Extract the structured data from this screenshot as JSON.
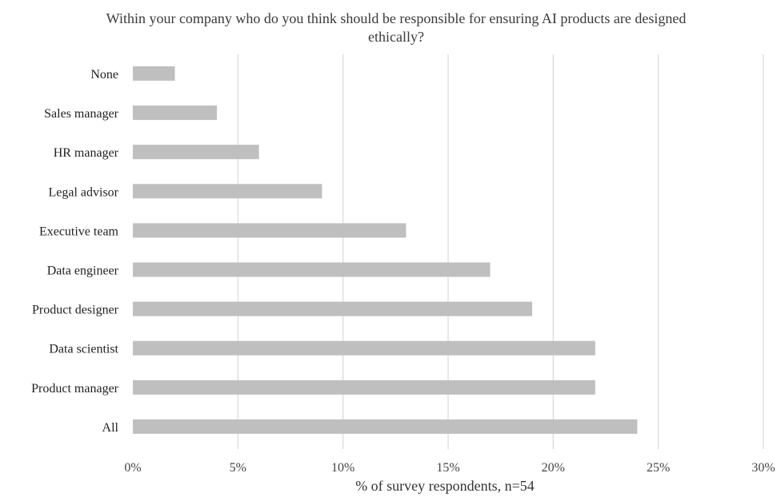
{
  "chart_data": {
    "type": "bar",
    "orientation": "horizontal",
    "title_lines": [
      "Within your company who do you think should be responsible for ensuring AI products are designed",
      "ethically?"
    ],
    "xlabel": "% of survey respondents, n=54",
    "ylabel": "",
    "categories": [
      "None",
      "Sales manager",
      "HR manager",
      "Legal advisor",
      "Executive team",
      "Data engineer",
      "Product designer",
      "Data scientist",
      "Product manager",
      "All"
    ],
    "values": [
      2,
      4,
      6,
      9,
      13,
      17,
      19,
      22,
      22,
      24
    ],
    "xlim": [
      0,
      30
    ],
    "x_ticks": [
      0,
      5,
      10,
      15,
      20,
      25,
      30
    ],
    "x_tick_labels": [
      "0%",
      "5%",
      "10%",
      "15%",
      "20%",
      "25%",
      "30%"
    ],
    "grid": "vertical",
    "legend": "none",
    "bar_color": "#bfbfbf"
  }
}
